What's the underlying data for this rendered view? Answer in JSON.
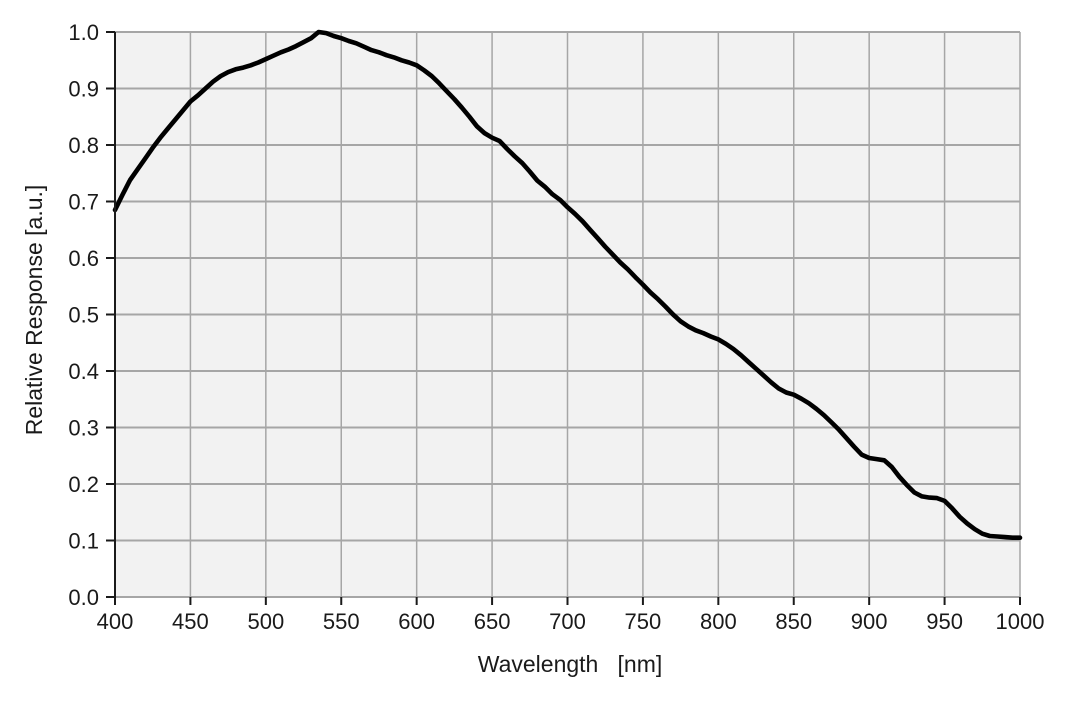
{
  "chart_data": {
    "type": "line",
    "title": "",
    "xlabel": "Wavelength   [nm]",
    "ylabel": "Relative Response [a.u.]",
    "xlim": [
      400,
      1000
    ],
    "ylim": [
      0.0,
      1.0
    ],
    "grid": true,
    "legend_position": "none",
    "x_ticks": [
      400,
      450,
      500,
      550,
      600,
      650,
      700,
      750,
      800,
      850,
      900,
      950,
      1000
    ],
    "x_tick_labels": [
      "400",
      "450",
      "500",
      "550",
      "600",
      "650",
      "700",
      "750",
      "800",
      "850",
      "900",
      "950",
      "1000"
    ],
    "y_ticks": [
      0.0,
      0.1,
      0.2,
      0.3,
      0.4,
      0.5,
      0.6,
      0.7,
      0.8,
      0.9,
      1.0
    ],
    "y_tick_labels": [
      "0.0",
      "0.1",
      "0.2",
      "0.3",
      "0.4",
      "0.5",
      "0.6",
      "0.7",
      "0.8",
      "0.9",
      "1.0"
    ],
    "colors": {
      "plot_background": "#f2f2f2",
      "page_background": "#ffffff",
      "grid": "#a6a6a6",
      "axis": "#1a1a1a",
      "text": "#1a1a1a",
      "curve": "#000000"
    },
    "series": [
      {
        "name": "Relative Response",
        "x": [
          400,
          405,
          410,
          415,
          420,
          425,
          430,
          435,
          440,
          445,
          450,
          455,
          460,
          465,
          470,
          475,
          480,
          485,
          490,
          495,
          500,
          505,
          510,
          515,
          520,
          525,
          530,
          535,
          540,
          545,
          550,
          555,
          560,
          565,
          570,
          575,
          580,
          585,
          590,
          595,
          600,
          605,
          610,
          615,
          620,
          625,
          630,
          635,
          640,
          645,
          650,
          655,
          660,
          665,
          670,
          675,
          680,
          685,
          690,
          695,
          700,
          705,
          710,
          715,
          720,
          725,
          730,
          735,
          740,
          745,
          750,
          755,
          760,
          765,
          770,
          775,
          780,
          785,
          790,
          795,
          800,
          805,
          810,
          815,
          820,
          825,
          830,
          835,
          840,
          845,
          850,
          855,
          860,
          865,
          870,
          875,
          880,
          885,
          890,
          895,
          900,
          905,
          910,
          915,
          920,
          925,
          930,
          935,
          940,
          945,
          950,
          955,
          960,
          965,
          970,
          975,
          980,
          985,
          990,
          995,
          1000
        ],
        "y": [
          0.685,
          0.712,
          0.738,
          0.757,
          0.776,
          0.795,
          0.813,
          0.829,
          0.845,
          0.861,
          0.877,
          0.888,
          0.9,
          0.912,
          0.922,
          0.929,
          0.934,
          0.937,
          0.941,
          0.946,
          0.952,
          0.958,
          0.964,
          0.969,
          0.975,
          0.982,
          0.989,
          1.0,
          0.998,
          0.993,
          0.989,
          0.984,
          0.98,
          0.974,
          0.968,
          0.964,
          0.959,
          0.955,
          0.95,
          0.946,
          0.941,
          0.932,
          0.922,
          0.909,
          0.895,
          0.881,
          0.866,
          0.85,
          0.833,
          0.821,
          0.813,
          0.807,
          0.793,
          0.78,
          0.768,
          0.753,
          0.737,
          0.726,
          0.713,
          0.703,
          0.69,
          0.678,
          0.665,
          0.65,
          0.635,
          0.62,
          0.606,
          0.592,
          0.58,
          0.566,
          0.553,
          0.539,
          0.527,
          0.514,
          0.5,
          0.488,
          0.479,
          0.472,
          0.467,
          0.461,
          0.456,
          0.448,
          0.439,
          0.428,
          0.416,
          0.404,
          0.392,
          0.38,
          0.369,
          0.362,
          0.358,
          0.351,
          0.343,
          0.333,
          0.322,
          0.309,
          0.296,
          0.281,
          0.266,
          0.252,
          0.246,
          0.244,
          0.242,
          0.23,
          0.213,
          0.198,
          0.185,
          0.178,
          0.176,
          0.175,
          0.17,
          0.157,
          0.142,
          0.13,
          0.12,
          0.112,
          0.108,
          0.107,
          0.106,
          0.105,
          0.105
        ]
      }
    ]
  }
}
